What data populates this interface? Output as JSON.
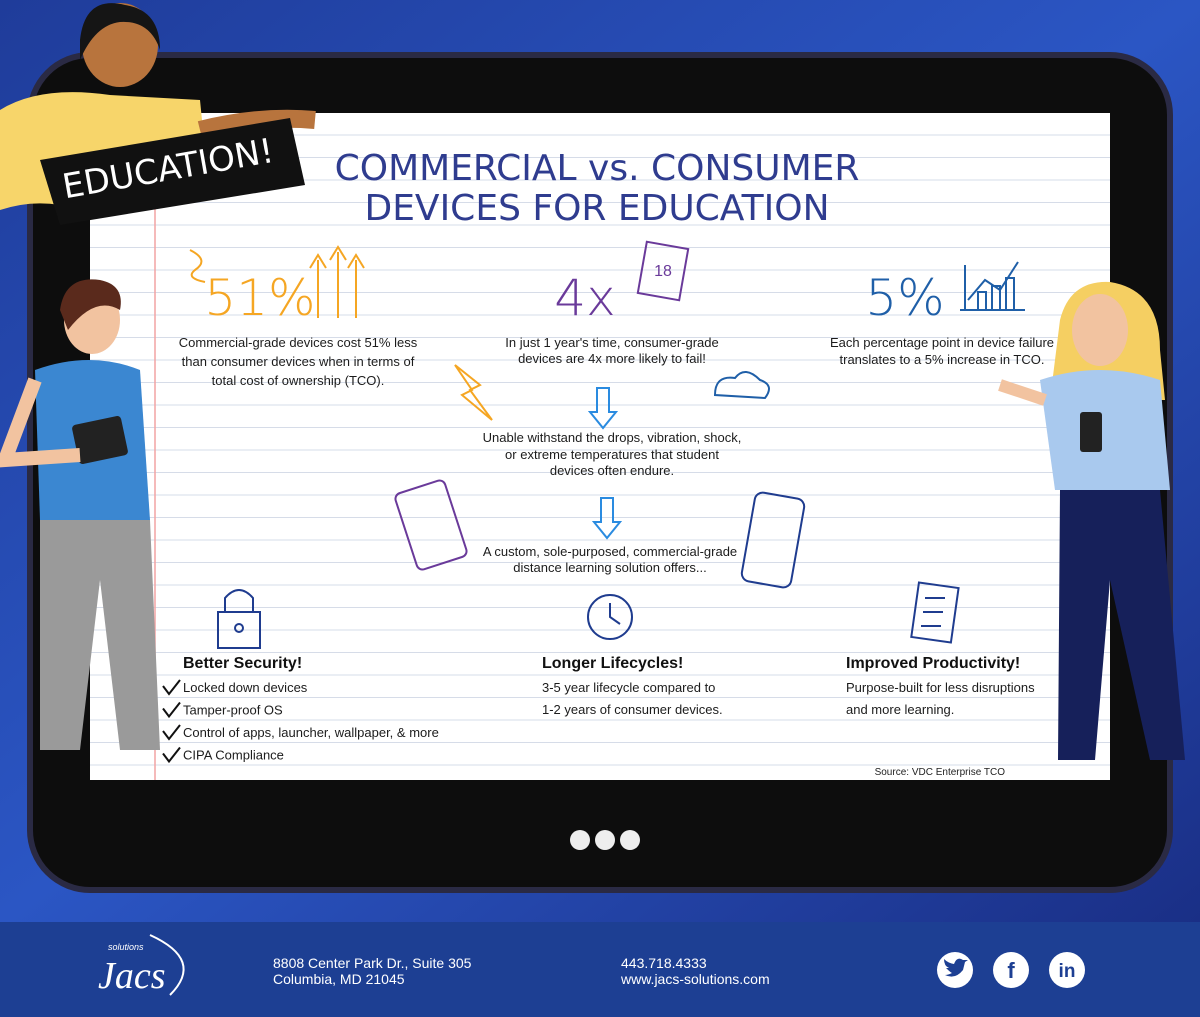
{
  "badge": "EDUCATION!",
  "title": [
    "COMMERCIAL vs. CONSUMER",
    "DEVICES FOR EDUCATION"
  ],
  "stats": [
    {
      "figure": "51%",
      "text": [
        "Commercial-grade devices cost 51% less",
        "than consumer devices when in terms of",
        "total cost of ownership (TCO)."
      ]
    },
    {
      "figure": "4x",
      "text": [
        "In just 1 year's time, consumer-grade",
        "devices are 4x more likely to fail!"
      ]
    },
    {
      "figure": "5%",
      "text": [
        "Each percentage point in device failure",
        "translates to a 5% increase in TCO."
      ]
    }
  ],
  "calendar_day": "18",
  "flow": [
    [
      "Unable withstand the drops, vibration, shock,",
      "or extreme temperatures that student",
      "devices often endure."
    ],
    [
      "A custom, sole-purposed, commercial-grade",
      "distance learning solution offers..."
    ]
  ],
  "benefits": [
    {
      "title": "Better Security!",
      "items": [
        "Locked down devices",
        "Tamper-proof OS",
        "Control of apps, launcher, wallpaper, & more",
        "CIPA Compliance"
      ]
    },
    {
      "title": "Longer Lifecycles!",
      "text": [
        "3-5 year lifecycle compared to",
        "1-2 years of consumer devices."
      ]
    },
    {
      "title": "Improved Productivity!",
      "text": [
        "Purpose-built for less disruptions",
        "and more learning."
      ]
    }
  ],
  "source": "Source: VDC Enterprise TCO",
  "footer": {
    "logo_small": "solutions",
    "logo": "Jacs",
    "address": [
      "8808 Center Park Dr., Suite 305",
      "Columbia, MD 21045"
    ],
    "phone": "443.718.4333",
    "web": "www.jacs-solutions.com",
    "social": [
      "f",
      "in"
    ]
  }
}
